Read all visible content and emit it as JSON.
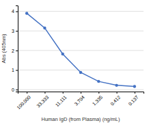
{
  "chart_data": {
    "type": "line",
    "categories": [
      "100,000",
      "33,333",
      "11,111",
      "3,704",
      "1,335",
      "0.412",
      "0.137"
    ],
    "values": [
      3.9,
      3.15,
      1.82,
      0.88,
      0.42,
      0.22,
      0.16
    ],
    "color": "#4472c4",
    "marker": "o",
    "xlabel": "Human IgD (from Plasma) (ng/mL)",
    "ylabel": "Abs (405nm)",
    "ylim": [
      -0.1,
      4.3
    ],
    "yticks": [
      0,
      1,
      2,
      3,
      4
    ],
    "grid": true
  }
}
